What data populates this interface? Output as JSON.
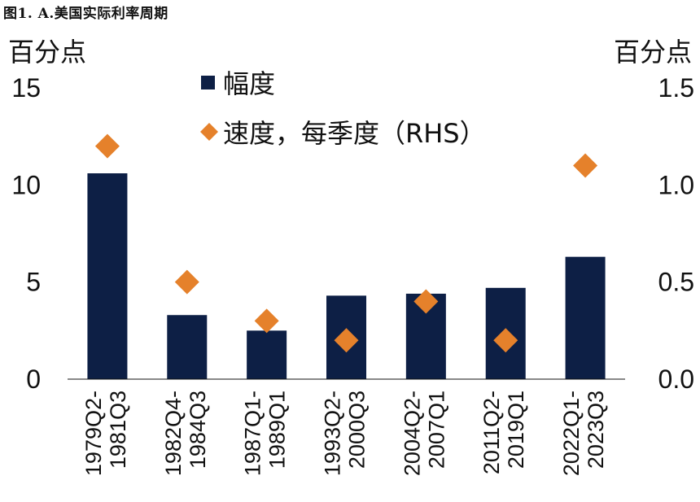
{
  "figure_title": "图1. A.美国实际利率周期",
  "chart_data": {
    "type": "bar",
    "title": "图1. A.美国实际利率周期",
    "ylabel": "百分点",
    "ylabel_right": "百分点",
    "ylim": [
      0,
      15
    ],
    "ylim_right": [
      0,
      1.5
    ],
    "yticks": [
      "0",
      "5",
      "10",
      "15"
    ],
    "yticks_right": [
      "0.0",
      "0.5",
      "1.0",
      "1.5"
    ],
    "categories": [
      [
        "1979Q2-",
        "1981Q3"
      ],
      [
        "1982Q4-",
        "1984Q3"
      ],
      [
        "1987Q1-",
        "1989Q1"
      ],
      [
        "1993Q2-",
        "2000Q3"
      ],
      [
        "2004Q2-",
        "2007Q1"
      ],
      [
        "2011Q2-",
        "2019Q1"
      ],
      [
        "2022Q1-",
        "2023Q3"
      ]
    ],
    "series": [
      {
        "name": "幅度",
        "type": "bar",
        "axis": "left",
        "color": "#0d1f45",
        "values": [
          10.6,
          3.3,
          2.5,
          4.3,
          4.4,
          4.7,
          6.3
        ]
      },
      {
        "name": "速度，每季度（RHS）",
        "type": "scatter",
        "marker": "diamond",
        "axis": "right",
        "color": "#e5812b",
        "values": [
          1.2,
          0.5,
          0.3,
          0.2,
          0.4,
          0.2,
          1.1
        ]
      }
    ],
    "legend": "top-center",
    "grid": false
  }
}
